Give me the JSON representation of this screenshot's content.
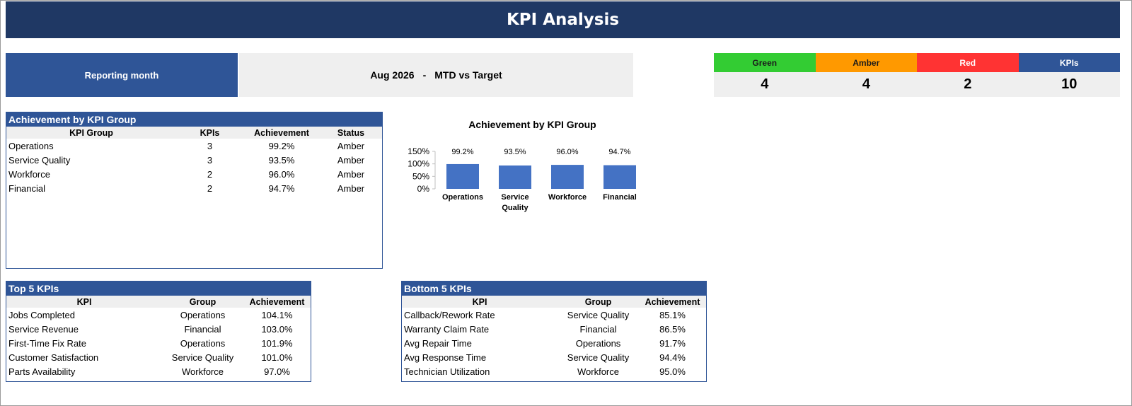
{
  "header": {
    "title": "KPI Analysis"
  },
  "reporting": {
    "label": "Reporting month",
    "month": "Aug 2026",
    "separator": "-",
    "comparison": "MTD vs Target"
  },
  "rag": [
    {
      "label": "Green",
      "value": "4",
      "color": "#33cc33"
    },
    {
      "label": "Amber",
      "value": "4",
      "color": "#ff9900"
    },
    {
      "label": "Red",
      "value": "2",
      "color": "#ff3333"
    },
    {
      "label": "KPIs",
      "value": "10",
      "color": "#2f5597"
    }
  ],
  "group_panel": {
    "title": "Achievement by KPI Group",
    "headers": [
      "KPI Group",
      "KPIs",
      "Achievement",
      "Status"
    ],
    "rows": [
      [
        "Operations",
        "3",
        "99.2%",
        "Amber"
      ],
      [
        "Service Quality",
        "3",
        "93.5%",
        "Amber"
      ],
      [
        "Workforce",
        "2",
        "96.0%",
        "Amber"
      ],
      [
        "Financial",
        "2",
        "94.7%",
        "Amber"
      ]
    ]
  },
  "top5": {
    "title": "Top 5 KPIs",
    "headers": [
      "KPI",
      "Group",
      "Achievement"
    ],
    "rows": [
      [
        "Jobs Completed",
        "Operations",
        "104.1%"
      ],
      [
        "Service Revenue",
        "Financial",
        "103.0%"
      ],
      [
        "First-Time Fix Rate",
        "Operations",
        "101.9%"
      ],
      [
        "Customer Satisfaction",
        "Service Quality",
        "101.0%"
      ],
      [
        "Parts Availability",
        "Workforce",
        "97.0%"
      ]
    ]
  },
  "bottom5": {
    "title": "Bottom 5 KPIs",
    "headers": [
      "KPI",
      "Group",
      "Achievement"
    ],
    "rows": [
      [
        "Callback/Rework Rate",
        "Service Quality",
        "85.1%"
      ],
      [
        "Warranty Claim Rate",
        "Financial",
        "86.5%"
      ],
      [
        "Avg Repair Time",
        "Operations",
        "91.7%"
      ],
      [
        "Avg Response Time",
        "Service Quality",
        "94.4%"
      ],
      [
        "Technician Utilization",
        "Workforce",
        "95.0%"
      ]
    ]
  },
  "chart_data": {
    "type": "bar",
    "title": "Achievement by KPI Group",
    "categories": [
      [
        "Operations"
      ],
      [
        "Service",
        "Quality"
      ],
      [
        "Workforce"
      ],
      [
        "Financial"
      ]
    ],
    "values": [
      99.2,
      93.5,
      96.0,
      94.7
    ],
    "data_labels": [
      "99.2%",
      "93.5%",
      "96.0%",
      "94.7%"
    ],
    "ylim": [
      0,
      150
    ],
    "yticks": [
      "150%",
      "100%",
      "50%",
      "0%"
    ],
    "bar_color": "#4472c4",
    "grid": false,
    "legend": "none"
  }
}
